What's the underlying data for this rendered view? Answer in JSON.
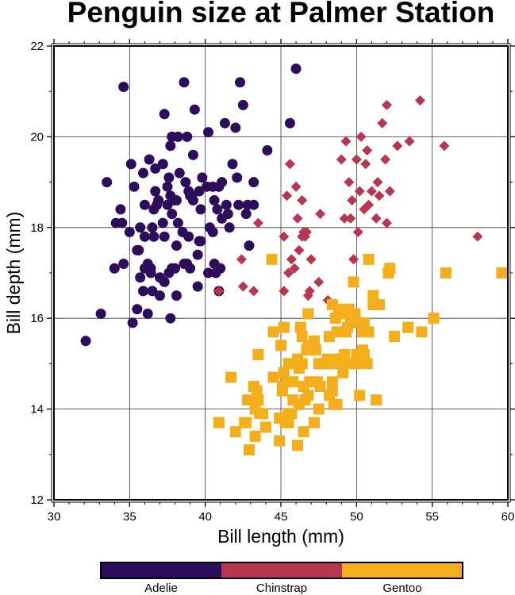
{
  "chart_data": {
    "type": "scatter",
    "title": "Penguin size at Palmer Station",
    "xlabel": "Bill length (mm)",
    "ylabel": "Bill depth (mm)",
    "xlim": [
      30,
      60
    ],
    "ylim": [
      12,
      22
    ],
    "xticks": [
      "30",
      "35",
      "40",
      "45",
      "50",
      "55",
      "60"
    ],
    "yticks": [
      "12",
      "14",
      "16",
      "18",
      "20",
      "22"
    ],
    "grid": true,
    "legend": {
      "placement": "bottom",
      "style": "colorbar"
    },
    "series": [
      {
        "name": "Adelie",
        "color": "#2d0c5c",
        "marker": "circle",
        "points": [
          [
            32.1,
            15.5
          ],
          [
            33.1,
            16.1
          ],
          [
            33.5,
            19.0
          ],
          [
            34.0,
            17.1
          ],
          [
            34.1,
            18.1
          ],
          [
            34.4,
            18.4
          ],
          [
            34.5,
            18.1
          ],
          [
            34.6,
            21.1
          ],
          [
            34.6,
            17.2
          ],
          [
            35.0,
            17.9
          ],
          [
            35.1,
            19.4
          ],
          [
            35.2,
            15.9
          ],
          [
            35.3,
            18.9
          ],
          [
            35.5,
            17.5
          ],
          [
            35.5,
            16.2
          ],
          [
            35.6,
            17.5
          ],
          [
            35.7,
            16.9
          ],
          [
            35.7,
            18.0
          ],
          [
            35.9,
            19.2
          ],
          [
            35.9,
            16.6
          ],
          [
            36.0,
            17.8
          ],
          [
            36.0,
            18.5
          ],
          [
            36.0,
            17.1
          ],
          [
            36.2,
            17.2
          ],
          [
            36.2,
            16.1
          ],
          [
            36.3,
            19.5
          ],
          [
            36.4,
            17.0
          ],
          [
            36.4,
            17.1
          ],
          [
            36.5,
            18.0
          ],
          [
            36.5,
            16.6
          ],
          [
            36.6,
            17.8
          ],
          [
            36.6,
            18.4
          ],
          [
            36.7,
            19.3
          ],
          [
            36.7,
            18.8
          ],
          [
            36.8,
            18.5
          ],
          [
            36.9,
            18.6
          ],
          [
            37.0,
            16.9
          ],
          [
            37.0,
            16.5
          ],
          [
            37.2,
            18.1
          ],
          [
            37.2,
            19.4
          ],
          [
            37.3,
            17.8
          ],
          [
            37.3,
            20.5
          ],
          [
            37.3,
            16.8
          ],
          [
            37.5,
            18.9
          ],
          [
            37.5,
            18.5
          ],
          [
            37.6,
            19.1
          ],
          [
            37.6,
            17.0
          ],
          [
            37.7,
            18.7
          ],
          [
            37.7,
            16.0
          ],
          [
            37.7,
            19.8
          ],
          [
            37.8,
            18.3
          ],
          [
            37.8,
            17.1
          ],
          [
            37.8,
            20.0
          ],
          [
            37.9,
            18.6
          ],
          [
            38.0,
            17.1
          ],
          [
            38.1,
            18.6
          ],
          [
            38.1,
            17.6
          ],
          [
            38.1,
            16.5
          ],
          [
            38.2,
            18.1
          ],
          [
            38.2,
            20.0
          ],
          [
            38.3,
            19.2
          ],
          [
            38.5,
            17.9
          ],
          [
            38.6,
            21.2
          ],
          [
            38.6,
            17.2
          ],
          [
            38.7,
            19.0
          ],
          [
            38.8,
            17.2
          ],
          [
            38.8,
            20.0
          ],
          [
            38.9,
            17.8
          ],
          [
            38.9,
            18.8
          ],
          [
            39.0,
            17.1
          ],
          [
            39.0,
            18.7
          ],
          [
            39.1,
            18.7
          ],
          [
            39.2,
            19.6
          ],
          [
            39.2,
            18.6
          ],
          [
            39.3,
            20.6
          ],
          [
            39.5,
            17.4
          ],
          [
            39.5,
            16.7
          ],
          [
            39.6,
            17.7
          ],
          [
            39.6,
            18.8
          ],
          [
            39.7,
            18.4
          ],
          [
            39.7,
            17.7
          ],
          [
            39.8,
            19.1
          ],
          [
            40.1,
            18.9
          ],
          [
            40.2,
            17.0
          ],
          [
            40.2,
            20.1
          ],
          [
            40.3,
            18.0
          ],
          [
            40.5,
            17.9
          ],
          [
            40.5,
            18.9
          ],
          [
            40.6,
            18.6
          ],
          [
            40.6,
            17.2
          ],
          [
            40.7,
            17.0
          ],
          [
            40.8,
            18.4
          ],
          [
            40.9,
            16.6
          ],
          [
            40.9,
            18.9
          ],
          [
            41.0,
            17.1
          ],
          [
            41.1,
            19.0
          ],
          [
            41.1,
            18.2
          ],
          [
            41.3,
            20.3
          ],
          [
            41.4,
            18.5
          ],
          [
            41.5,
            18.3
          ],
          [
            41.6,
            18.0
          ],
          [
            41.8,
            19.4
          ],
          [
            42.0,
            20.2
          ],
          [
            42.1,
            19.1
          ],
          [
            42.2,
            18.5
          ],
          [
            42.3,
            21.2
          ],
          [
            42.5,
            20.7
          ],
          [
            42.7,
            18.3
          ],
          [
            42.8,
            18.5
          ],
          [
            42.9,
            17.6
          ],
          [
            43.2,
            19.0
          ],
          [
            43.2,
            18.5
          ],
          [
            44.1,
            19.7
          ],
          [
            45.6,
            20.3
          ],
          [
            46.0,
            21.5
          ]
        ]
      },
      {
        "name": "Chinstrap",
        "color": "#b8364f",
        "marker": "diamond",
        "points": [
          [
            40.9,
            16.6
          ],
          [
            42.4,
            17.3
          ],
          [
            42.5,
            16.7
          ],
          [
            43.2,
            16.6
          ],
          [
            43.5,
            18.1
          ],
          [
            45.2,
            17.8
          ],
          [
            45.2,
            16.6
          ],
          [
            45.4,
            18.7
          ],
          [
            45.5,
            17.0
          ],
          [
            45.6,
            19.4
          ],
          [
            45.7,
            17.3
          ],
          [
            45.9,
            17.1
          ],
          [
            46.0,
            18.9
          ],
          [
            46.1,
            18.2
          ],
          [
            46.2,
            17.5
          ],
          [
            46.4,
            17.8
          ],
          [
            46.4,
            18.6
          ],
          [
            46.5,
            17.9
          ],
          [
            46.6,
            17.8
          ],
          [
            46.7,
            17.9
          ],
          [
            46.8,
            16.5
          ],
          [
            46.9,
            16.6
          ],
          [
            47.0,
            17.3
          ],
          [
            47.5,
            16.8
          ],
          [
            47.6,
            18.3
          ],
          [
            48.1,
            16.4
          ],
          [
            49.0,
            19.5
          ],
          [
            49.2,
            18.2
          ],
          [
            49.3,
            19.9
          ],
          [
            49.5,
            19.0
          ],
          [
            49.6,
            18.2
          ],
          [
            49.7,
            18.6
          ],
          [
            49.8,
            17.3
          ],
          [
            50.0,
            19.5
          ],
          [
            50.1,
            17.9
          ],
          [
            50.2,
            18.8
          ],
          [
            50.3,
            20.0
          ],
          [
            50.5,
            18.4
          ],
          [
            50.6,
            19.4
          ],
          [
            50.7,
            19.7
          ],
          [
            50.8,
            18.5
          ],
          [
            51.0,
            18.8
          ],
          [
            51.3,
            18.2
          ],
          [
            51.4,
            19.0
          ],
          [
            51.5,
            18.7
          ],
          [
            51.7,
            20.3
          ],
          [
            51.9,
            19.5
          ],
          [
            52.0,
            18.1
          ],
          [
            52.0,
            20.7
          ],
          [
            52.2,
            18.8
          ],
          [
            52.7,
            19.8
          ],
          [
            53.5,
            19.9
          ],
          [
            54.2,
            20.8
          ],
          [
            55.8,
            19.8
          ],
          [
            58.0,
            17.8
          ]
        ]
      },
      {
        "name": "Gentoo",
        "color": "#f5ae1b",
        "marker": "square",
        "points": [
          [
            40.9,
            13.7
          ],
          [
            41.7,
            14.7
          ],
          [
            42.0,
            13.5
          ],
          [
            42.6,
            13.7
          ],
          [
            42.7,
            13.7
          ],
          [
            42.8,
            14.2
          ],
          [
            42.9,
            13.1
          ],
          [
            43.2,
            14.5
          ],
          [
            43.3,
            14.0
          ],
          [
            43.3,
            13.4
          ],
          [
            43.4,
            14.4
          ],
          [
            43.5,
            14.2
          ],
          [
            43.5,
            15.2
          ],
          [
            43.6,
            13.9
          ],
          [
            43.8,
            13.9
          ],
          [
            44.0,
            13.6
          ],
          [
            44.4,
            17.3
          ],
          [
            44.5,
            14.7
          ],
          [
            44.5,
            15.7
          ],
          [
            44.9,
            13.8
          ],
          [
            44.9,
            13.3
          ],
          [
            45.0,
            15.4
          ],
          [
            45.1,
            14.5
          ],
          [
            45.1,
            14.4
          ],
          [
            45.2,
            13.8
          ],
          [
            45.2,
            14.8
          ],
          [
            45.2,
            15.8
          ],
          [
            45.3,
            13.7
          ],
          [
            45.4,
            14.6
          ],
          [
            45.5,
            13.7
          ],
          [
            45.5,
            15.0
          ],
          [
            45.5,
            13.9
          ],
          [
            45.7,
            13.9
          ],
          [
            45.8,
            14.2
          ],
          [
            45.8,
            14.6
          ],
          [
            46.1,
            13.2
          ],
          [
            46.1,
            15.1
          ],
          [
            46.2,
            14.9
          ],
          [
            46.2,
            14.1
          ],
          [
            46.3,
            15.8
          ],
          [
            46.4,
            15.6
          ],
          [
            46.4,
            15.0
          ],
          [
            46.5,
            14.5
          ],
          [
            46.5,
            13.5
          ],
          [
            46.6,
            14.2
          ],
          [
            46.7,
            15.3
          ],
          [
            46.8,
            14.3
          ],
          [
            46.8,
            15.4
          ],
          [
            46.8,
            16.1
          ],
          [
            46.9,
            14.6
          ],
          [
            47.2,
            13.7
          ],
          [
            47.2,
            15.5
          ],
          [
            47.3,
            15.3
          ],
          [
            47.4,
            14.6
          ],
          [
            47.5,
            14.0
          ],
          [
            47.5,
            15.0
          ],
          [
            47.6,
            14.5
          ],
          [
            47.7,
            15.0
          ],
          [
            47.8,
            15.0
          ],
          [
            48.1,
            15.1
          ],
          [
            48.2,
            14.3
          ],
          [
            48.2,
            15.6
          ],
          [
            48.4,
            14.6
          ],
          [
            48.4,
            16.3
          ],
          [
            48.4,
            14.4
          ],
          [
            48.5,
            14.1
          ],
          [
            48.5,
            15.0
          ],
          [
            48.6,
            16.0
          ],
          [
            48.7,
            14.1
          ],
          [
            48.7,
            15.1
          ],
          [
            48.7,
            15.7
          ],
          [
            48.8,
            16.2
          ],
          [
            49.0,
            16.1
          ],
          [
            49.1,
            14.8
          ],
          [
            49.1,
            15.0
          ],
          [
            49.2,
            15.2
          ],
          [
            49.3,
            15.7
          ],
          [
            49.4,
            15.8
          ],
          [
            49.5,
            16.2
          ],
          [
            49.5,
            16.1
          ],
          [
            49.6,
            15.0
          ],
          [
            49.6,
            16.0
          ],
          [
            49.8,
            15.9
          ],
          [
            49.8,
            16.8
          ],
          [
            49.9,
            16.1
          ],
          [
            50.0,
            15.2
          ],
          [
            50.0,
            15.9
          ],
          [
            50.1,
            15.0
          ],
          [
            50.2,
            14.3
          ],
          [
            50.4,
            15.3
          ],
          [
            50.4,
            15.7
          ],
          [
            50.5,
            15.2
          ],
          [
            50.5,
            15.9
          ],
          [
            50.7,
            15.0
          ],
          [
            50.8,
            15.7
          ],
          [
            50.8,
            17.3
          ],
          [
            51.1,
            16.3
          ],
          [
            51.1,
            16.5
          ],
          [
            51.3,
            14.2
          ],
          [
            51.5,
            16.3
          ],
          [
            52.1,
            17.0
          ],
          [
            52.2,
            17.1
          ],
          [
            52.5,
            15.6
          ],
          [
            53.4,
            15.8
          ],
          [
            54.3,
            15.7
          ],
          [
            55.1,
            16.0
          ],
          [
            55.9,
            17.0
          ],
          [
            59.6,
            17.0
          ]
        ]
      }
    ]
  }
}
